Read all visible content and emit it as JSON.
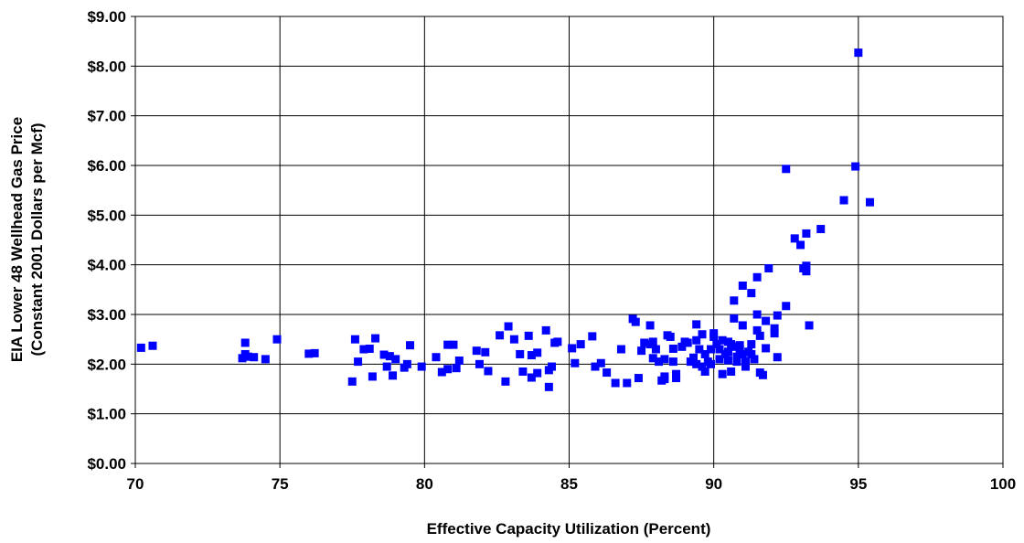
{
  "chart_data": {
    "type": "scatter",
    "xlabel": "Effective Capacity Utilization (Percent)",
    "ylabel_line1": "EIA Lower 48 Wellhead Gas Price",
    "ylabel_line2": "(Constant 2001 Dollars per Mcf)",
    "xlim": [
      70,
      100
    ],
    "ylim": [
      0,
      9
    ],
    "x_ticks": [
      70,
      75,
      80,
      85,
      90,
      95,
      100
    ],
    "x_tick_labels": [
      "70",
      "75",
      "80",
      "85",
      "90",
      "95",
      "100"
    ],
    "y_ticks": [
      0,
      1,
      2,
      3,
      4,
      5,
      6,
      7,
      8,
      9
    ],
    "y_tick_labels": [
      "$0.00",
      "$1.00",
      "$2.00",
      "$3.00",
      "$4.00",
      "$5.00",
      "$6.00",
      "$7.00",
      "$8.00",
      "$9.00"
    ],
    "grid": true,
    "legend": "none",
    "marker_color": "#0000FF",
    "points": [
      [
        70.2,
        2.33
      ],
      [
        70.6,
        2.37
      ],
      [
        73.7,
        2.12
      ],
      [
        73.8,
        2.43
      ],
      [
        73.8,
        2.2
      ],
      [
        73.9,
        2.15
      ],
      [
        74.1,
        2.14
      ],
      [
        74.5,
        2.1
      ],
      [
        74.9,
        2.5
      ],
      [
        76,
        2.21
      ],
      [
        76.2,
        2.22
      ],
      [
        77.5,
        1.65
      ],
      [
        77.6,
        2.5
      ],
      [
        77.7,
        2.05
      ],
      [
        77.9,
        2.3
      ],
      [
        78.1,
        2.31
      ],
      [
        78.3,
        2.52
      ],
      [
        78.2,
        1.75
      ],
      [
        78.6,
        2.19
      ],
      [
        78.8,
        2.16
      ],
      [
        78.7,
        1.95
      ],
      [
        78.9,
        1.77
      ],
      [
        79,
        2.1
      ],
      [
        79.3,
        1.93
      ],
      [
        79.4,
        2.0
      ],
      [
        79.5,
        2.38
      ],
      [
        79.9,
        1.95
      ],
      [
        80.4,
        2.14
      ],
      [
        80.6,
        1.84
      ],
      [
        80.8,
        1.9
      ],
      [
        80.8,
        2.39
      ],
      [
        81,
        2.39
      ],
      [
        81.2,
        2.07
      ],
      [
        81.1,
        1.92
      ],
      [
        81.8,
        2.27
      ],
      [
        81.9,
        2.0
      ],
      [
        82.1,
        2.24
      ],
      [
        82.2,
        1.86
      ],
      [
        82.6,
        2.58
      ],
      [
        82.9,
        2.76
      ],
      [
        83.1,
        2.5
      ],
      [
        82.8,
        1.65
      ],
      [
        83.3,
        2.2
      ],
      [
        83.4,
        1.85
      ],
      [
        83.6,
        2.57
      ],
      [
        83.7,
        2.18
      ],
      [
        83.7,
        1.73
      ],
      [
        83.9,
        2.23
      ],
      [
        83.9,
        1.82
      ],
      [
        84.2,
        2.68
      ],
      [
        84.3,
        1.88
      ],
      [
        84.5,
        2.43
      ],
      [
        84.4,
        1.95
      ],
      [
        84.6,
        2.45
      ],
      [
        84.3,
        1.54
      ],
      [
        85.1,
        2.32
      ],
      [
        85.2,
        2.02
      ],
      [
        85.4,
        2.4
      ],
      [
        85.8,
        2.56
      ],
      [
        85.9,
        1.95
      ],
      [
        86.1,
        2.02
      ],
      [
        86.3,
        1.83
      ],
      [
        86.6,
        1.62
      ],
      [
        86.8,
        2.3
      ],
      [
        87,
        1.62
      ],
      [
        87.2,
        2.91
      ],
      [
        87.3,
        2.85
      ],
      [
        87.4,
        1.72
      ],
      [
        87.5,
        2.27
      ],
      [
        87.6,
        2.43
      ],
      [
        87.8,
        2.78
      ],
      [
        87.9,
        2.45
      ],
      [
        87.8,
        2.4
      ],
      [
        88,
        2.3
      ],
      [
        87.9,
        2.12
      ],
      [
        88.1,
        2.05
      ],
      [
        88.2,
        1.67
      ],
      [
        88.3,
        1.75
      ],
      [
        88.3,
        2.1
      ],
      [
        88.3,
        1.7
      ],
      [
        88.4,
        2.58
      ],
      [
        88.5,
        2.55
      ],
      [
        88.6,
        2.05
      ],
      [
        88.6,
        2.31
      ],
      [
        88.7,
        1.8
      ],
      [
        88.7,
        1.72
      ],
      [
        88.9,
        2.35
      ],
      [
        89,
        2.45
      ],
      [
        89.1,
        2.43
      ],
      [
        89.2,
        2.05
      ],
      [
        89.3,
        2.13
      ],
      [
        89.4,
        2.48
      ],
      [
        89.4,
        2.0
      ],
      [
        89.4,
        2.8
      ],
      [
        89.5,
        2.3
      ],
      [
        89.6,
        2.6
      ],
      [
        89.6,
        1.95
      ],
      [
        89.7,
        2.2
      ],
      [
        89.7,
        1.85
      ],
      [
        89.8,
        2.05
      ],
      [
        89.9,
        2.0
      ],
      [
        89.9,
        2.3
      ],
      [
        90,
        2.55
      ],
      [
        90,
        2.62
      ],
      [
        90.1,
        2.4
      ],
      [
        90.2,
        2.3
      ],
      [
        90.2,
        2.1
      ],
      [
        90.3,
        2.48
      ],
      [
        90.3,
        1.8
      ],
      [
        90.4,
        2.2
      ],
      [
        90.5,
        2.45
      ],
      [
        90.5,
        2.08
      ],
      [
        90.5,
        2.25
      ],
      [
        90.6,
        1.85
      ],
      [
        90.6,
        2.4
      ],
      [
        90.7,
        3.28
      ],
      [
        90.7,
        2.92
      ],
      [
        90.7,
        2.35
      ],
      [
        90.8,
        2.15
      ],
      [
        90.8,
        2.05
      ],
      [
        90.9,
        2.3
      ],
      [
        90.9,
        2.38
      ],
      [
        91,
        3.58
      ],
      [
        91,
        2.78
      ],
      [
        91,
        2.2
      ],
      [
        91.1,
        2.05
      ],
      [
        91.1,
        1.95
      ],
      [
        91.2,
        2.25
      ],
      [
        91.3,
        3.43
      ],
      [
        91.3,
        2.4
      ],
      [
        91.3,
        2.2
      ],
      [
        91.4,
        2.1
      ],
      [
        91.5,
        3.75
      ],
      [
        91.5,
        3.0
      ],
      [
        91.5,
        2.68
      ],
      [
        91.6,
        2.57
      ],
      [
        91.6,
        1.83
      ],
      [
        91.7,
        1.78
      ],
      [
        91.8,
        2.87
      ],
      [
        91.8,
        2.32
      ],
      [
        91.9,
        3.93
      ],
      [
        92.1,
        2.62
      ],
      [
        92.1,
        2.72
      ],
      [
        92.2,
        2.98
      ],
      [
        92.2,
        2.14
      ],
      [
        92.5,
        3.17
      ],
      [
        92.5,
        5.93
      ],
      [
        92.8,
        4.53
      ],
      [
        93,
        4.4
      ],
      [
        93.1,
        3.93
      ],
      [
        93.2,
        4.63
      ],
      [
        93.2,
        3.87
      ],
      [
        93.2,
        3.98
      ],
      [
        93.3,
        2.78
      ],
      [
        93.7,
        4.72
      ],
      [
        94.5,
        5.3
      ],
      [
        94.9,
        5.98
      ],
      [
        95,
        8.27
      ],
      [
        95.4,
        5.26
      ]
    ]
  }
}
